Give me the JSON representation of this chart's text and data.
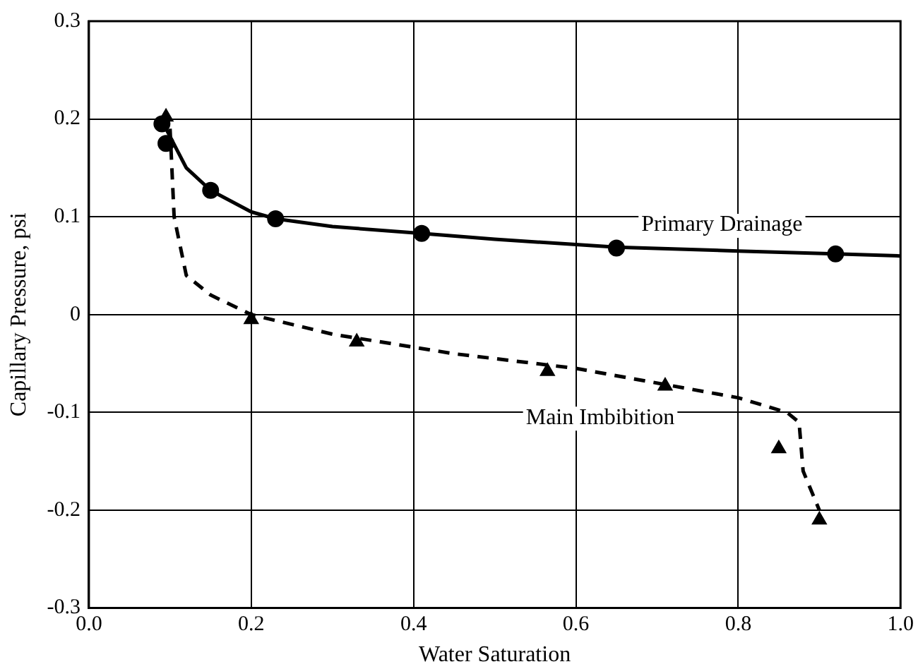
{
  "chart_data": {
    "type": "scatter",
    "xlabel": "Water Saturation",
    "ylabel": "Capillary Pressure, psi",
    "xlim": [
      0,
      1
    ],
    "ylim": [
      -0.3,
      0.3
    ],
    "xticks": [
      {
        "value": 0,
        "label": "0.0"
      },
      {
        "value": 0.2,
        "label": "0.2"
      },
      {
        "value": 0.4,
        "label": "0.4"
      },
      {
        "value": 0.6,
        "label": "0.6"
      },
      {
        "value": 0.8,
        "label": "0.8"
      },
      {
        "value": 1,
        "label": "1.0"
      }
    ],
    "yticks": [
      -0.3,
      -0.2,
      -0.1,
      0,
      0.1,
      0.2,
      0.3
    ],
    "grid": true,
    "series": [
      {
        "type": "line",
        "name": "Primary Drainage",
        "color": "#000000",
        "line_style": "solid",
        "marker": "none",
        "x": [
          0.095,
          0.12,
          0.15,
          0.2,
          0.23,
          0.3,
          0.41,
          0.5,
          0.65,
          0.8,
          0.92,
          1.0
        ],
        "values": [
          0.19,
          0.15,
          0.127,
          0.105,
          0.098,
          0.09,
          0.083,
          0.077,
          0.069,
          0.065,
          0.062,
          0.06
        ]
      },
      {
        "color": "#000000",
        "marker": "circle",
        "x": [
          0.09,
          0.095,
          0.15,
          0.23,
          0.41,
          0.65,
          0.92
        ],
        "values": [
          0.195,
          0.175,
          0.127,
          0.098,
          0.083,
          0.068,
          0.062
        ]
      },
      {
        "type": "line",
        "name": "Main Imbibition",
        "color": "#000000",
        "line_style": "dashed",
        "marker": "none",
        "x": [
          0.1,
          0.105,
          0.12,
          0.15,
          0.2,
          0.3,
          0.45,
          0.6,
          0.8,
          0.86,
          0.875,
          0.88,
          0.9
        ],
        "values": [
          0.19,
          0.1,
          0.04,
          0.02,
          0.0,
          -0.02,
          -0.04,
          -0.055,
          -0.085,
          -0.1,
          -0.11,
          -0.16,
          -0.2
        ]
      },
      {
        "color": "#000000",
        "marker": "triangle",
        "x": [
          0.095,
          0.2,
          0.33,
          0.565,
          0.71,
          0.85,
          0.9
        ],
        "values": [
          0.202,
          -0.005,
          -0.028,
          -0.058,
          -0.073,
          -0.137,
          -0.21
        ]
      }
    ]
  }
}
